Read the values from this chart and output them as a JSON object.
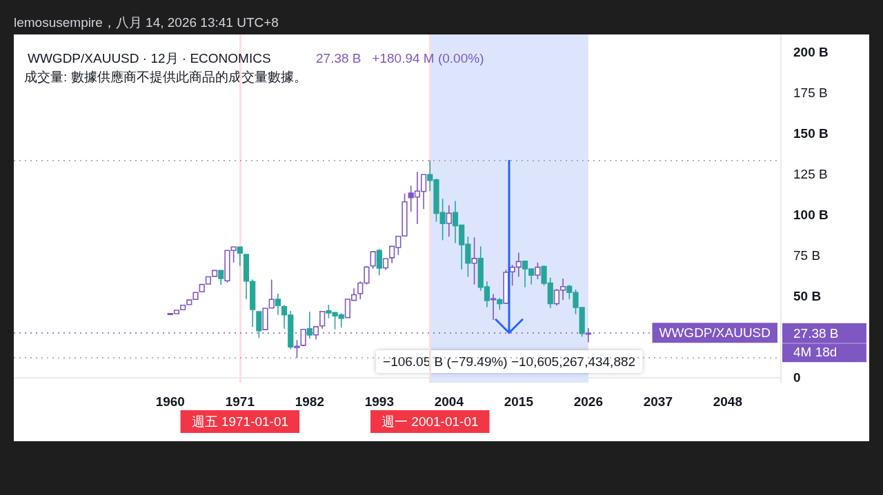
{
  "chart_data": {
    "type": "candlestick",
    "title": "WWGDP/XAUUSD · 12月 · ECONOMICS",
    "subtitle": "27.38 B   +180.94 M (0.00%)",
    "annotations": [
      "lemosusempire，八月 14, 2026 13:41 UTC+8",
      "成交量: 數據供應商不提供此商品的成交量數據。",
      "WWGDP/XAUUSD",
      "4M 18d"
    ],
    "x": [
      1960,
      1961,
      1962,
      1963,
      1964,
      1965,
      1966,
      1967,
      1968,
      1969,
      1970,
      1971,
      1972,
      1973,
      1974,
      1975,
      1976,
      1977,
      1978,
      1979,
      1980,
      1981,
      1982,
      1983,
      1984,
      1985,
      1986,
      1987,
      1988,
      1989,
      1990,
      1991,
      1992,
      1993,
      1994,
      1995,
      1996,
      1997,
      1998,
      1999,
      2000,
      2001,
      2002,
      2003,
      2004,
      2005,
      2006,
      2007,
      2008,
      2009,
      2010,
      2011,
      2012,
      2013,
      2014,
      2015,
      2016,
      2017,
      2018,
      2019,
      2020,
      2021,
      2022,
      2023,
      2024,
      2025,
      2026
    ],
    "ohlc": [
      [
        39.2,
        39.4,
        39.2,
        39.4
      ],
      [
        39.3,
        41.4,
        39.3,
        41.4
      ],
      [
        41.7,
        44.5,
        41.7,
        44.5
      ],
      [
        44.9,
        47.7,
        44.9,
        47.7
      ],
      [
        48.1,
        52.3,
        48.1,
        52.3
      ],
      [
        52.7,
        57.2,
        52.7,
        57.2
      ],
      [
        57.5,
        61.9,
        57.5,
        61.9
      ],
      [
        62.2,
        65.8,
        62.2,
        65.8
      ],
      [
        65.8,
        65.8,
        57.0,
        60.9
      ],
      [
        59.5,
        78.1,
        58.4,
        78.1
      ],
      [
        78.1,
        80.2,
        70.7,
        80.2
      ],
      [
        80.2,
        80.2,
        68.6,
        76.4
      ],
      [
        75.6,
        75.6,
        48.2,
        59.3
      ],
      [
        59.1,
        60.2,
        31.2,
        41.9
      ],
      [
        40.5,
        40.5,
        24.5,
        28.8
      ],
      [
        29.5,
        42.6,
        29.5,
        42.6
      ],
      [
        42.8,
        60.2,
        42.8,
        48.1
      ],
      [
        48.2,
        51.6,
        38.6,
        44.3
      ],
      [
        43.6,
        44.7,
        30.1,
        38.6
      ],
      [
        38.4,
        41.0,
        17.5,
        18.9
      ],
      [
        18.5,
        23.1,
        12.3,
        19.3
      ],
      [
        19.9,
        29.7,
        19.3,
        29.7
      ],
      [
        30.1,
        40.5,
        24.1,
        26.2
      ],
      [
        26.3,
        31.3,
        23.4,
        31.3
      ],
      [
        31.8,
        40.7,
        30.1,
        40.7
      ],
      [
        41.1,
        44.7,
        36.5,
        39.7
      ],
      [
        40.0,
        40.0,
        29.7,
        37.9
      ],
      [
        38.5,
        39.6,
        30.9,
        36.5
      ],
      [
        36.9,
        48.2,
        36.9,
        48.2
      ],
      [
        47.5,
        54.8,
        47.5,
        50.9
      ],
      [
        51.7,
        59.1,
        48.2,
        58.1
      ],
      [
        58.1,
        68.6,
        57.2,
        67.9
      ],
      [
        68.6,
        77.3,
        66.8,
        77.3
      ],
      [
        78.1,
        78.8,
        62.9,
        67.2
      ],
      [
        67.4,
        73.0,
        66.1,
        73.0
      ],
      [
        73.6,
        80.6,
        70.3,
        80.6
      ],
      [
        79.9,
        86.8,
        75.3,
        86.8
      ],
      [
        87.0,
        113.0,
        87.0,
        107.9
      ],
      [
        113.3,
        117.8,
        101.8,
        110.5
      ],
      [
        110.9,
        126.3,
        94.3,
        114.5
      ],
      [
        114.3,
        124.6,
        103.5,
        124.6
      ],
      [
        124.6,
        133.43,
        114.5,
        121.1
      ],
      [
        121.4,
        122.1,
        95.7,
        100.9
      ],
      [
        101.3,
        109.8,
        84.4,
        94.6
      ],
      [
        94.7,
        105.8,
        86.6,
        100.9
      ],
      [
        101.3,
        108.4,
        82.6,
        93.2
      ],
      [
        93.6,
        93.6,
        66.4,
        81.6
      ],
      [
        81.9,
        86.6,
        61.9,
        70.3
      ],
      [
        70.3,
        86.1,
        57.2,
        73.2
      ],
      [
        73.2,
        80.6,
        53.4,
        55.5
      ],
      [
        55.8,
        59.1,
        43.3,
        47.4
      ],
      [
        48.1,
        51.3,
        35.5,
        48.5
      ],
      [
        47.8,
        49.0,
        41.7,
        45.4
      ],
      [
        45.7,
        66.1,
        45.7,
        64.7
      ],
      [
        65.0,
        69.3,
        56.5,
        67.8
      ],
      [
        67.9,
        76.7,
        61.9,
        71.3
      ],
      [
        71.5,
        71.5,
        55.5,
        66.8
      ],
      [
        66.8,
        66.8,
        57.2,
        62.9
      ],
      [
        63.0,
        70.7,
        60.5,
        67.8
      ],
      [
        68.2,
        68.9,
        56.5,
        57.9
      ],
      [
        58.1,
        61.4,
        42.8,
        45.4
      ],
      [
        45.4,
        54.4,
        44.3,
        53.7
      ],
      [
        53.8,
        60.9,
        47.8,
        55.9
      ],
      [
        56.1,
        57.0,
        48.2,
        52.3
      ],
      [
        52.3,
        54.1,
        39.0,
        43.1
      ],
      [
        43.1,
        43.1,
        25.2,
        27.2
      ],
      [
        27.2,
        30.4,
        21.7,
        27.38
      ]
    ],
    "colors": [
      "#7e57c2",
      "#7e57c2",
      "#7e57c2",
      "#7e57c2",
      "#7e57c2",
      "#7e57c2",
      "#7e57c2",
      "#7e57c2",
      "#26a69a",
      "#7e57c2",
      "#7e57c2",
      "#26a69a",
      "#26a69a",
      "#26a69a",
      "#26a69a",
      "#7e57c2",
      "#7e57c2",
      "#26a69a",
      "#26a69a",
      "#26a69a",
      "#7e57c2",
      "#7e57c2",
      "#26a69a",
      "#7e57c2",
      "#7e57c2",
      "#26a69a",
      "#26a69a",
      "#26a69a",
      "#7e57c2",
      "#7e57c2",
      "#7e57c2",
      "#7e57c2",
      "#7e57c2",
      "#26a69a",
      "#7e57c2",
      "#7e57c2",
      "#7e57c2",
      "#7e57c2",
      "#7e57c2",
      "#7e57c2",
      "#7e57c2",
      "#26a69a",
      "#26a69a",
      "#26a69a",
      "#7e57c2",
      "#26a69a",
      "#26a69a",
      "#26a69a",
      "#7e57c2",
      "#26a69a",
      "#26a69a",
      "#7e57c2",
      "#26a69a",
      "#7e57c2",
      "#7e57c2",
      "#7e57c2",
      "#26a69a",
      "#26a69a",
      "#7e57c2",
      "#26a69a",
      "#26a69a",
      "#7e57c2",
      "#7e57c2",
      "#26a69a",
      "#26a69a",
      "#26a69a",
      "#7e57c2"
    ],
    "xlim": [
      1935.3,
      2056.4
    ],
    "xticks": [
      1960,
      1971,
      1982,
      1993,
      2004,
      2015,
      2026,
      2037,
      2048
    ],
    "ylim": [
      -3,
      210.6
    ],
    "yticks": [
      {
        "value": 0,
        "label": "0"
      },
      {
        "value": 50,
        "label": "50 B"
      },
      {
        "value": 75,
        "label": "75 B"
      },
      {
        "value": 100,
        "label": "100 B"
      },
      {
        "value": 125,
        "label": "125 B"
      },
      {
        "value": 150,
        "label": "150 B"
      },
      {
        "value": 175,
        "label": "175 B"
      },
      {
        "value": 200,
        "label": "200 B"
      }
    ],
    "ref_lines": [
      {
        "axis": "x",
        "value": 1971,
        "label": "週五 1971-01-01",
        "color": "#fcdde0",
        "line_style": "solid"
      },
      {
        "axis": "x",
        "value": 2001,
        "label": "週一 2001-01-01",
        "color": "#fcdde0",
        "line_style": "solid"
      },
      {
        "axis": "y",
        "value": 133.43,
        "color": "#9598a1",
        "line_style": "dotted"
      },
      {
        "axis": "y",
        "value": 27.38,
        "label": "27.38 B",
        "color": "#7e57c2",
        "line_style": "dotted"
      },
      {
        "axis": "y",
        "value": 12.3,
        "color": "#9598a1",
        "line_style": "dotted"
      }
    ],
    "bands": [
      {
        "axis": "x",
        "from": 2001,
        "to": 2026,
        "label": "−106.05 B (−79.49%) −10,605,267,434,882",
        "color": "#dde5fd"
      }
    ]
  }
}
